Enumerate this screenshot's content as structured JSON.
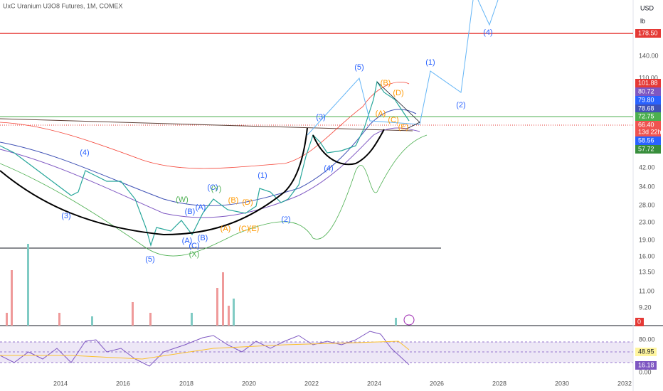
{
  "header": {
    "title": "UxC Uranium U3O8 Futures, 1M, COMEX"
  },
  "units": [
    "USD",
    "lb"
  ],
  "price_labels": [
    "140.00",
    "110.00",
    "42.00",
    "34.00",
    "28.00",
    "23.00",
    "19.00",
    "16.00",
    "13.50",
    "11.00",
    "9.20"
  ],
  "badges": [
    "178.50",
    "101.88",
    "80.72",
    "79.80",
    "78.68",
    "72.75",
    "66.40",
    "58.56",
    "57.72",
    "0"
  ],
  "countdown": "13d 22h",
  "rsi_labels": [
    "80.00",
    "0.00"
  ],
  "rsi_badges": [
    "48.95",
    "16.18"
  ],
  "time_labels": [
    "2014",
    "2016",
    "2018",
    "2020",
    "2022",
    "2024",
    "2026",
    "2028",
    "2030",
    "2032"
  ],
  "waves": [
    "(4)",
    "(1)",
    "(5)",
    "(2)",
    "(3)",
    "(4)",
    "(4)",
    "(1)",
    "(3)",
    "(2)",
    "(5)",
    "(C)",
    "(A)",
    "(B)",
    "(A)",
    "(B)",
    "(C)",
    "(W)",
    "(Y)",
    "(X)",
    "(B)",
    "(D)",
    "(A)",
    "(C)",
    "(E)",
    "(B)",
    "(D)",
    "(A)",
    "(C)",
    "(E)"
  ]
}
